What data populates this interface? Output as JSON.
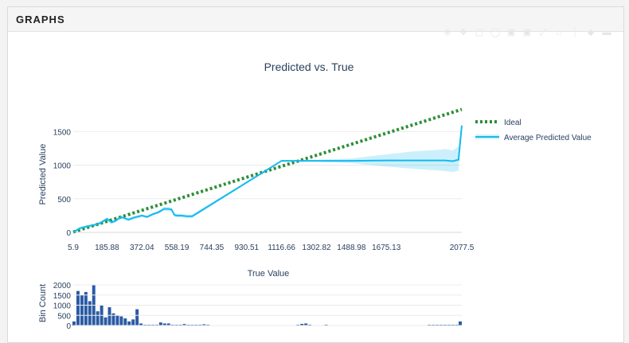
{
  "panel": {
    "title": "GRAPHS"
  },
  "modebar": [
    "zoom-icon",
    "pan-icon",
    "box-select-icon",
    "lasso-select-icon",
    "zoom-in-icon",
    "zoom-out-icon",
    "autoscale-icon",
    "reset-axes-icon",
    "spike-lines-icon",
    "hover-closest-icon",
    "hover-compare-icon"
  ],
  "chart_data": [
    {
      "type": "line",
      "title": "Predicted vs. True",
      "xlabel": "",
      "ylabel": "Predicted Value",
      "xlim": [
        5.9,
        2077.5
      ],
      "ylim": [
        0,
        1800
      ],
      "x_ticks": [
        "5.9",
        "185.88",
        "372.04",
        "558.19",
        "744.35",
        "930.51",
        "1116.66",
        "1302.82",
        "1488.98",
        "1675.13",
        "2077.5"
      ],
      "y_ticks": [
        "0",
        "500",
        "1000",
        "1500"
      ],
      "grid": true,
      "legend": "right",
      "series": [
        {
          "name": "Ideal",
          "color": "#2d8e38",
          "style": "dotted",
          "x": [
            5.9,
            2077.5
          ],
          "y": [
            5.9,
            1830
          ]
        },
        {
          "name": "Average Predicted Value",
          "color": "#14b9f0",
          "style": "solid",
          "x": [
            5.9,
            40,
            80,
            120,
            150,
            185.88,
            210,
            230,
            260,
            300,
            330,
            372.04,
            400,
            430,
            460,
            490,
            510,
            530,
            545,
            558.19,
            580,
            610,
            640,
            1116.66,
            1200,
            1302.82,
            1488.98,
            1675.13,
            1800,
            1900,
            1960,
            1990,
            2010,
            2030,
            2050,
            2060,
            2077.5
          ],
          "y": [
            0,
            60,
            90,
            110,
            140,
            200,
            150,
            170,
            230,
            190,
            220,
            250,
            230,
            270,
            300,
            350,
            350,
            340,
            260,
            250,
            250,
            240,
            240,
            1065,
            1065,
            1065,
            1065,
            1070,
            1070,
            1070,
            1070,
            1070,
            1065,
            1060,
            1075,
            1080,
            1590
          ],
          "band_upper": [
            20,
            80,
            110,
            130,
            160,
            225,
            175,
            195,
            250,
            215,
            245,
            270,
            250,
            290,
            320,
            380,
            380,
            370,
            290,
            275,
            275,
            265,
            265,
            1075,
            1075,
            1080,
            1100,
            1160,
            1200,
            1220,
            1230,
            1240,
            1230,
            1220,
            1260,
            1280,
            1630
          ],
          "band_lower": [
            -20,
            40,
            70,
            90,
            120,
            175,
            125,
            145,
            210,
            165,
            195,
            230,
            210,
            250,
            280,
            320,
            320,
            310,
            230,
            225,
            225,
            215,
            215,
            1055,
            1055,
            1050,
            1030,
            980,
            950,
            930,
            920,
            910,
            905,
            900,
            910,
            920,
            1550
          ]
        }
      ]
    },
    {
      "type": "bar",
      "title": "",
      "xlabel": "True Value",
      "ylabel": "Bin Count",
      "ylim": [
        0,
        2000
      ],
      "y_ticks": [
        "0",
        "500",
        "1000",
        "1500",
        "2000"
      ],
      "color": "#2a5aa5",
      "x": [
        5.9,
        27,
        48,
        69,
        90,
        111,
        132,
        153,
        174,
        195,
        216,
        237,
        258,
        279,
        300,
        321,
        342,
        363,
        384,
        405,
        426,
        447,
        468,
        489,
        510,
        531,
        552,
        573,
        594,
        615,
        636,
        657,
        678,
        699,
        720,
        1200,
        1221,
        1242,
        1263,
        1350,
        1900,
        1921,
        1942,
        1963,
        1984,
        2005,
        2026,
        2047,
        2068
      ],
      "values": [
        200,
        1700,
        1500,
        1650,
        1200,
        2000,
        700,
        1000,
        400,
        900,
        600,
        500,
        450,
        350,
        200,
        300,
        800,
        100,
        30,
        0,
        0,
        0,
        150,
        100,
        100,
        0,
        0,
        0,
        70,
        30,
        30,
        0,
        0,
        60,
        40,
        40,
        80,
        100,
        40,
        40,
        30,
        30,
        30,
        30,
        30,
        30,
        30,
        30,
        200
      ]
    }
  ]
}
